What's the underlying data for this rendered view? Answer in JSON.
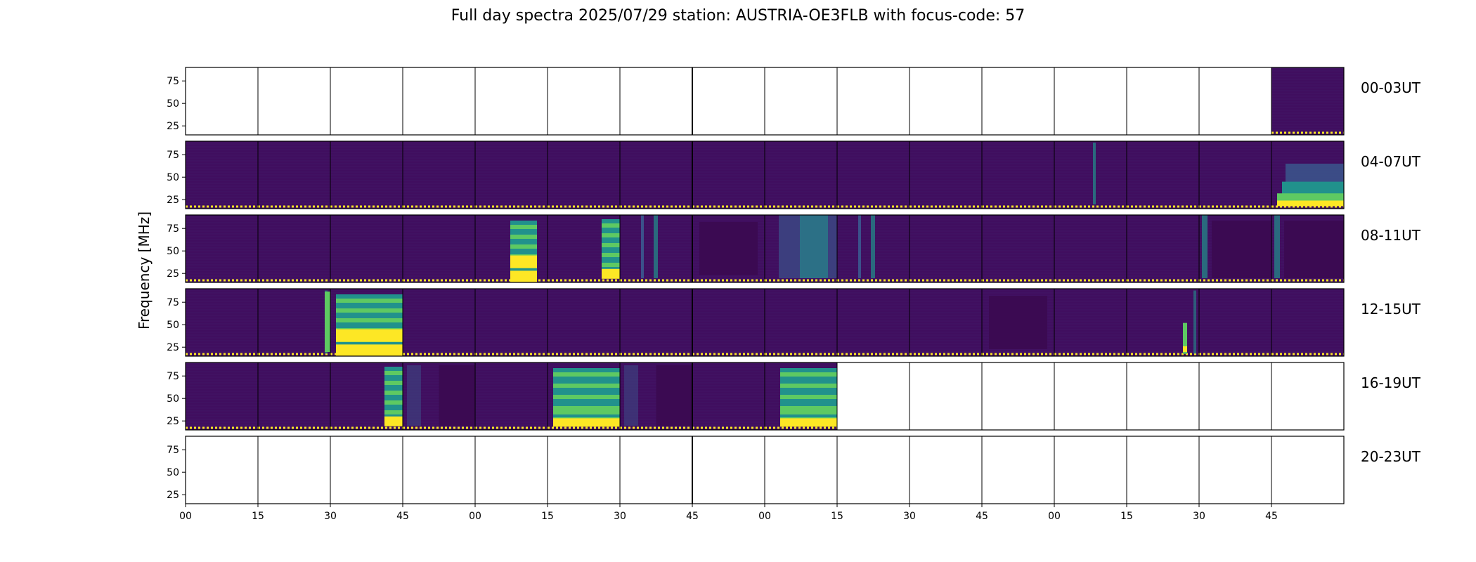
{
  "chart_data": {
    "type": "heatmap",
    "title": "Full day spectra 2025/07/29 station: AUSTRIA-OE3FLB with focus-code: 57",
    "ylabel": "Frequency [MHz]",
    "y_ticks": [
      "25",
      "50",
      "75"
    ],
    "x_ticks": [
      "00",
      "15",
      "30",
      "45",
      "00",
      "15",
      "30",
      "45",
      "00",
      "15",
      "30",
      "45",
      "00",
      "15",
      "30",
      "45"
    ],
    "grid": "6 rows x 16 panels of 15 minutes",
    "rows": [
      {
        "label": "00-03UT",
        "panels": [
          "empty",
          "empty",
          "empty",
          "empty",
          "empty",
          "empty",
          "empty",
          "empty",
          "empty",
          "empty",
          "empty",
          "empty",
          "empty",
          "empty",
          "empty",
          "quiet"
        ]
      },
      {
        "label": "04-07UT",
        "panels": [
          "quiet",
          "quiet",
          "quiet",
          "quiet",
          "quiet",
          "quiet",
          "quiet",
          "quiet",
          "quiet",
          "quiet",
          "quiet",
          "quiet",
          "quiet-line",
          "quiet",
          "quiet",
          "burst-tail"
        ]
      },
      {
        "label": "08-11UT",
        "panels": [
          "quiet",
          "quiet",
          "quiet",
          "quiet",
          "burst-strong",
          "burst-edge",
          "bands",
          "dark",
          "bands-wide",
          "bands",
          "quiet",
          "quiet",
          "quiet",
          "quiet",
          "dark-bands",
          "dark-bands"
        ]
      },
      {
        "label": "12-15UT",
        "panels": [
          "quiet",
          "quiet-edge",
          "burst-strong",
          "quiet",
          "quiet",
          "quiet",
          "quiet",
          "quiet",
          "quiet",
          "quiet",
          "quiet",
          "dark",
          "quiet",
          "quiet-edge",
          "quiet",
          "quiet"
        ]
      },
      {
        "label": "16-19UT",
        "panels": [
          "quiet",
          "quiet",
          "burst-edge",
          "dark-half",
          "quiet",
          "burst-wide",
          "dark-half",
          "quiet",
          "burst-wide2",
          "empty",
          "empty",
          "empty",
          "empty",
          "empty",
          "empty",
          "empty"
        ]
      },
      {
        "label": "20-23UT",
        "panels": [
          "empty",
          "empty",
          "empty",
          "empty",
          "empty",
          "empty",
          "empty",
          "empty",
          "empty",
          "empty",
          "empty",
          "empty",
          "empty",
          "empty",
          "empty",
          "empty"
        ]
      }
    ],
    "colormap": {
      "low": "#440154",
      "mid": "#3b528b",
      "teal": "#21918c",
      "green": "#5ec962",
      "high": "#fde725"
    }
  }
}
